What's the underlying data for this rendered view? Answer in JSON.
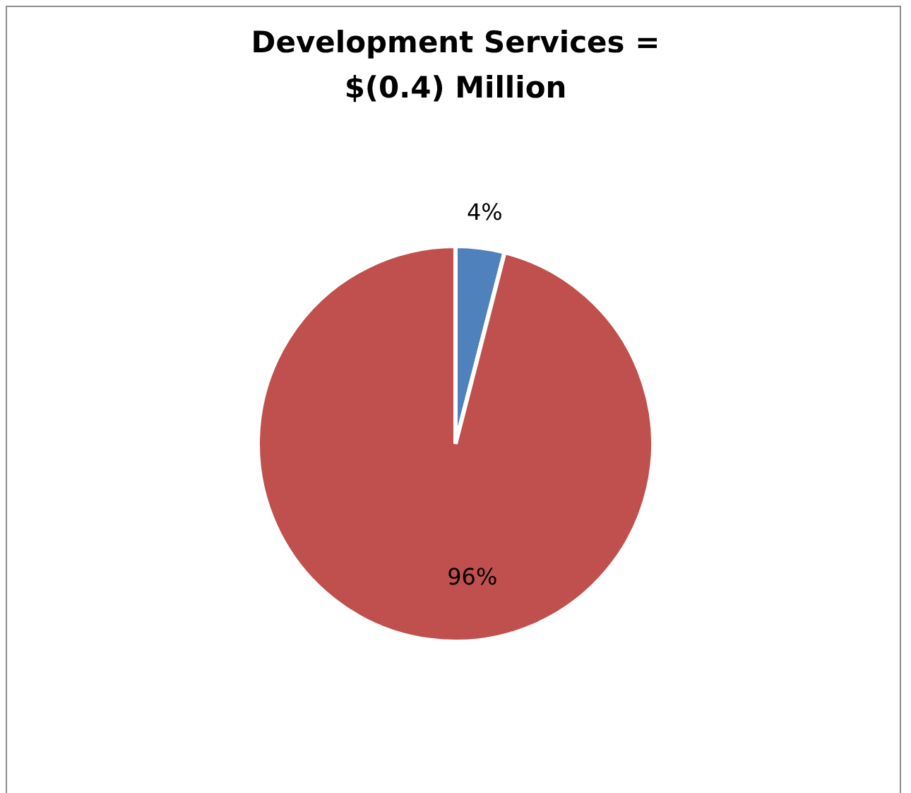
{
  "chart_data": {
    "type": "pie",
    "title": "Development Services = $(0.4) Million",
    "categories": [
      null,
      null
    ],
    "values": [
      4,
      96
    ],
    "colors": [
      "#4f81bd",
      "#c0504d"
    ],
    "value_labels": [
      "4%",
      "96%"
    ],
    "legend": false
  }
}
